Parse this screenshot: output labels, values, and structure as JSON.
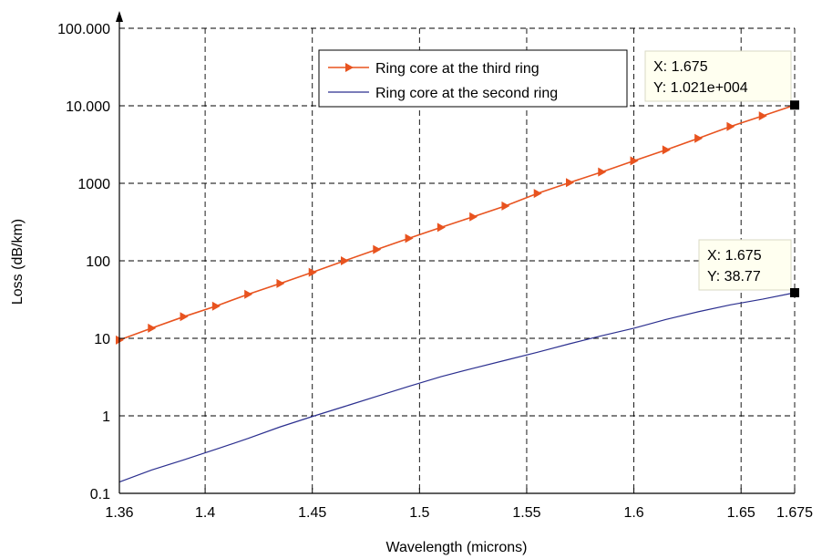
{
  "chart_data": {
    "type": "line",
    "xlabel": "Wavelength (microns)",
    "ylabel": "Loss (dB/km)",
    "xlim": [
      1.36,
      1.675
    ],
    "ylim": [
      0.1,
      100000
    ],
    "yscale": "log",
    "grid": true,
    "legend_position": "top-right",
    "x_ticks": [
      1.36,
      1.4,
      1.45,
      1.5,
      1.55,
      1.6,
      1.65,
      1.675
    ],
    "x_tick_labels": [
      "1.36",
      "1.4",
      "1.45",
      "1.5",
      "1.55",
      "1.6",
      "1.65",
      "1.675"
    ],
    "y_ticks": [
      0.1,
      1,
      10,
      100,
      1000,
      10000,
      100000
    ],
    "y_tick_labels": [
      "0.1",
      "1",
      "10",
      "100",
      "1000",
      "10.000",
      "100.000"
    ],
    "series": [
      {
        "name": "Ring core at the third ring",
        "color": "#e8531f",
        "marker": "triangle-right",
        "x": [
          1.36,
          1.375,
          1.39,
          1.405,
          1.42,
          1.435,
          1.45,
          1.465,
          1.48,
          1.495,
          1.51,
          1.525,
          1.54,
          1.555,
          1.57,
          1.585,
          1.6,
          1.615,
          1.63,
          1.645,
          1.66,
          1.675
        ],
        "y": [
          9.5,
          13.5,
          19,
          26,
          37,
          51,
          71,
          100,
          140,
          195,
          270,
          370,
          510,
          740,
          1020,
          1400,
          1950,
          2700,
          3800,
          5400,
          7400,
          10210
        ]
      },
      {
        "name": "Ring core at the second ring",
        "color": "#2b2f8f",
        "marker": "none",
        "x": [
          1.36,
          1.375,
          1.39,
          1.405,
          1.42,
          1.435,
          1.45,
          1.465,
          1.48,
          1.495,
          1.51,
          1.525,
          1.54,
          1.555,
          1.57,
          1.585,
          1.6,
          1.615,
          1.63,
          1.645,
          1.66,
          1.675
        ],
        "y": [
          0.14,
          0.2,
          0.27,
          0.37,
          0.51,
          0.72,
          0.98,
          1.32,
          1.78,
          2.4,
          3.2,
          4.1,
          5.2,
          6.6,
          8.5,
          10.8,
          13.5,
          17.5,
          22,
          27,
          32,
          38.77
        ]
      }
    ],
    "annotations": [
      {
        "x": 1.675,
        "y": 10210,
        "line1": "X: 1.675",
        "line2": "Y: 1.021e+004"
      },
      {
        "x": 1.675,
        "y": 38.77,
        "line1": "X: 1.675",
        "line2": "Y: 38.77"
      }
    ]
  }
}
